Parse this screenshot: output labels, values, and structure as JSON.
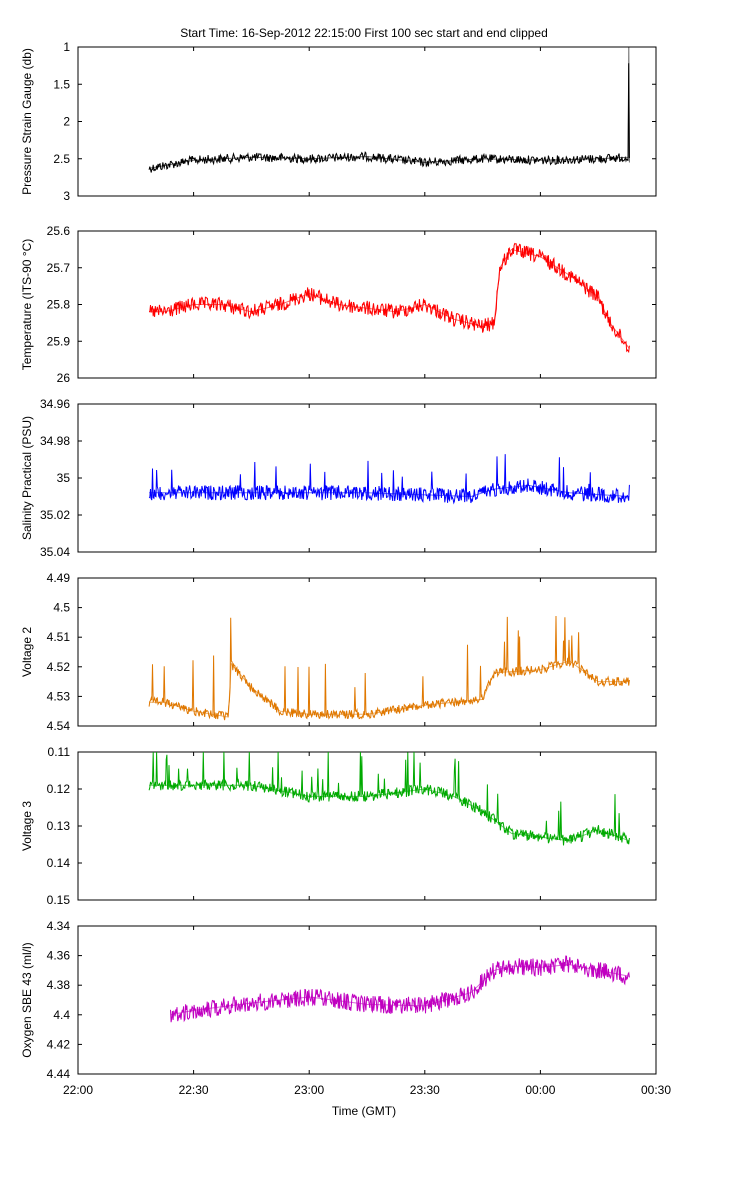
{
  "title": "Start Time: 16-Sep-2012 22:15:00   First 100 sec start and end clipped",
  "xlabel": "Time (GMT)",
  "x_ticks": [
    "22:00",
    "22:30",
    "23:00",
    "23:30",
    "00:00",
    "00:30"
  ],
  "chart_data": [
    {
      "type": "line",
      "ylabel": "Pressure Strain Gauge (db)",
      "color": "#000000",
      "yreverse": true,
      "ylim": [
        1,
        3
      ],
      "yticks": [
        "1",
        "1.5",
        "2",
        "2.5",
        "3"
      ],
      "x": [
        0.123,
        0.2,
        0.3,
        0.4,
        0.5,
        0.6,
        0.7,
        0.8,
        0.9,
        0.952,
        0.953,
        0.954
      ],
      "y": [
        2.63,
        2.52,
        2.48,
        2.5,
        2.47,
        2.55,
        2.5,
        2.52,
        2.5,
        2.48,
        1.0,
        2.55
      ],
      "noise": 0.06,
      "spikes": 0
    },
    {
      "type": "line",
      "ylabel": "Temperature (ITS-90 °C)",
      "color": "#ff0000",
      "yreverse": true,
      "ylim": [
        25.6,
        26
      ],
      "yticks": [
        "25.6",
        "25.7",
        "25.8",
        "25.9",
        "26"
      ],
      "x": [
        0.123,
        0.15,
        0.2,
        0.25,
        0.3,
        0.35,
        0.4,
        0.45,
        0.5,
        0.55,
        0.6,
        0.65,
        0.7,
        0.72,
        0.73,
        0.75,
        0.8,
        0.85,
        0.9,
        0.92,
        0.954
      ],
      "y": [
        25.82,
        25.82,
        25.8,
        25.8,
        25.82,
        25.8,
        25.77,
        25.8,
        25.81,
        25.82,
        25.8,
        25.84,
        25.86,
        25.85,
        25.7,
        25.65,
        25.67,
        25.72,
        25.78,
        25.85,
        25.92
      ],
      "noise": 0.02,
      "spikes": 0
    },
    {
      "type": "line",
      "ylabel": "Salinity Practical (PSU)",
      "color": "#0000ff",
      "yreverse": true,
      "ylim": [
        34.96,
        35.04
      ],
      "yticks": [
        "34.96",
        "34.98",
        "35",
        "35.02",
        "35.04"
      ],
      "x": [
        0.123,
        0.3,
        0.5,
        0.68,
        0.72,
        0.78,
        0.85,
        0.954
      ],
      "y": [
        35.008,
        35.008,
        35.008,
        35.01,
        35.006,
        35.004,
        35.008,
        35.01
      ],
      "noise": 0.004,
      "spikes": 0.02
    },
    {
      "type": "line",
      "ylabel": "Voltage 2",
      "color": "#e07800",
      "yreverse": true,
      "ylim": [
        4.49,
        4.54
      ],
      "yticks": [
        "4.49",
        "4.5",
        "4.51",
        "4.52",
        "4.53",
        "4.54"
      ],
      "x": [
        0.123,
        0.15,
        0.2,
        0.26,
        0.265,
        0.3,
        0.35,
        0.4,
        0.5,
        0.6,
        0.65,
        0.7,
        0.72,
        0.8,
        0.85,
        0.9,
        0.954
      ],
      "y": [
        4.532,
        4.532,
        4.535,
        4.537,
        4.519,
        4.527,
        4.535,
        4.536,
        4.536,
        4.533,
        4.532,
        4.531,
        4.522,
        4.521,
        4.518,
        4.525,
        4.525
      ],
      "noise": 0.0015,
      "spikes": 0.02
    },
    {
      "type": "line",
      "ylabel": "Voltage 3",
      "color": "#00aa00",
      "yreverse": true,
      "ylim": [
        0.11,
        0.15
      ],
      "yticks": [
        "0.11",
        "0.12",
        "0.13",
        "0.14",
        "0.15"
      ],
      "x": [
        0.123,
        0.2,
        0.3,
        0.4,
        0.5,
        0.6,
        0.65,
        0.7,
        0.75,
        0.8,
        0.85,
        0.9,
        0.954
      ],
      "y": [
        0.119,
        0.119,
        0.119,
        0.122,
        0.122,
        0.12,
        0.122,
        0.126,
        0.132,
        0.133,
        0.134,
        0.131,
        0.134
      ],
      "noise": 0.0015,
      "spikes": -0.012
    },
    {
      "type": "line",
      "ylabel": "Oxygen SBE 43 (ml/l)",
      "color": "#c000c0",
      "yreverse": true,
      "ylim": [
        4.34,
        4.44
      ],
      "yticks": [
        "4.34",
        "4.36",
        "4.38",
        "4.4",
        "4.42",
        "4.44"
      ],
      "x": [
        0.16,
        0.2,
        0.3,
        0.4,
        0.5,
        0.6,
        0.68,
        0.72,
        0.75,
        0.8,
        0.85,
        0.9,
        0.954
      ],
      "y": [
        4.4,
        4.397,
        4.392,
        4.388,
        4.393,
        4.394,
        4.385,
        4.37,
        4.367,
        4.368,
        4.366,
        4.37,
        4.374
      ],
      "noise": 0.006,
      "spikes": 0
    }
  ]
}
